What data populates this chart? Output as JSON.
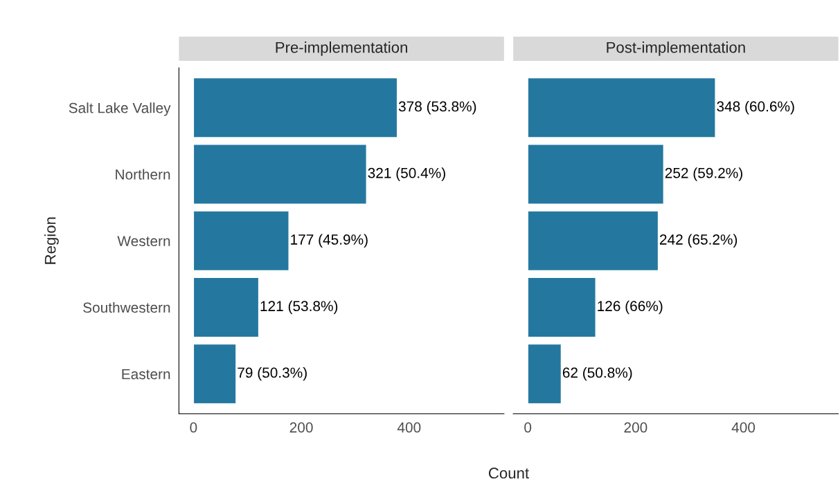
{
  "chart_data": [
    {
      "type": "bar",
      "orientation": "horizontal",
      "title": "Pre-implementation",
      "xlabel": "Count",
      "ylabel": "Region",
      "categories": [
        "Salt Lake Valley",
        "Northern",
        "Western",
        "Southwestern",
        "Eastern"
      ],
      "values": [
        378,
        321,
        177,
        121,
        79
      ],
      "value_labels": [
        "378 (53.8%)",
        "321 (50.4%)",
        "177 (45.9%)",
        "121 (53.8%)",
        "79 (50.3%)"
      ],
      "color": "#24789f",
      "xlim": [
        -27,
        576
      ],
      "xticks": [
        0,
        200,
        400
      ],
      "grid": false
    },
    {
      "type": "bar",
      "orientation": "horizontal",
      "title": "Post-implementation",
      "values": [
        348,
        252,
        242,
        126,
        62
      ],
      "categories": [
        null,
        null,
        null,
        null,
        null
      ],
      "value_labels": [
        "348 (60.6%)",
        "252 (59.2%)",
        "242 (65.2%)",
        "126 (66%)",
        "62 (50.8%)"
      ],
      "color": "#24789f",
      "xlim": [
        -27,
        576
      ],
      "xticks": [
        0,
        200,
        400
      ],
      "grid": false,
      "tick_labels": "x"
    }
  ]
}
